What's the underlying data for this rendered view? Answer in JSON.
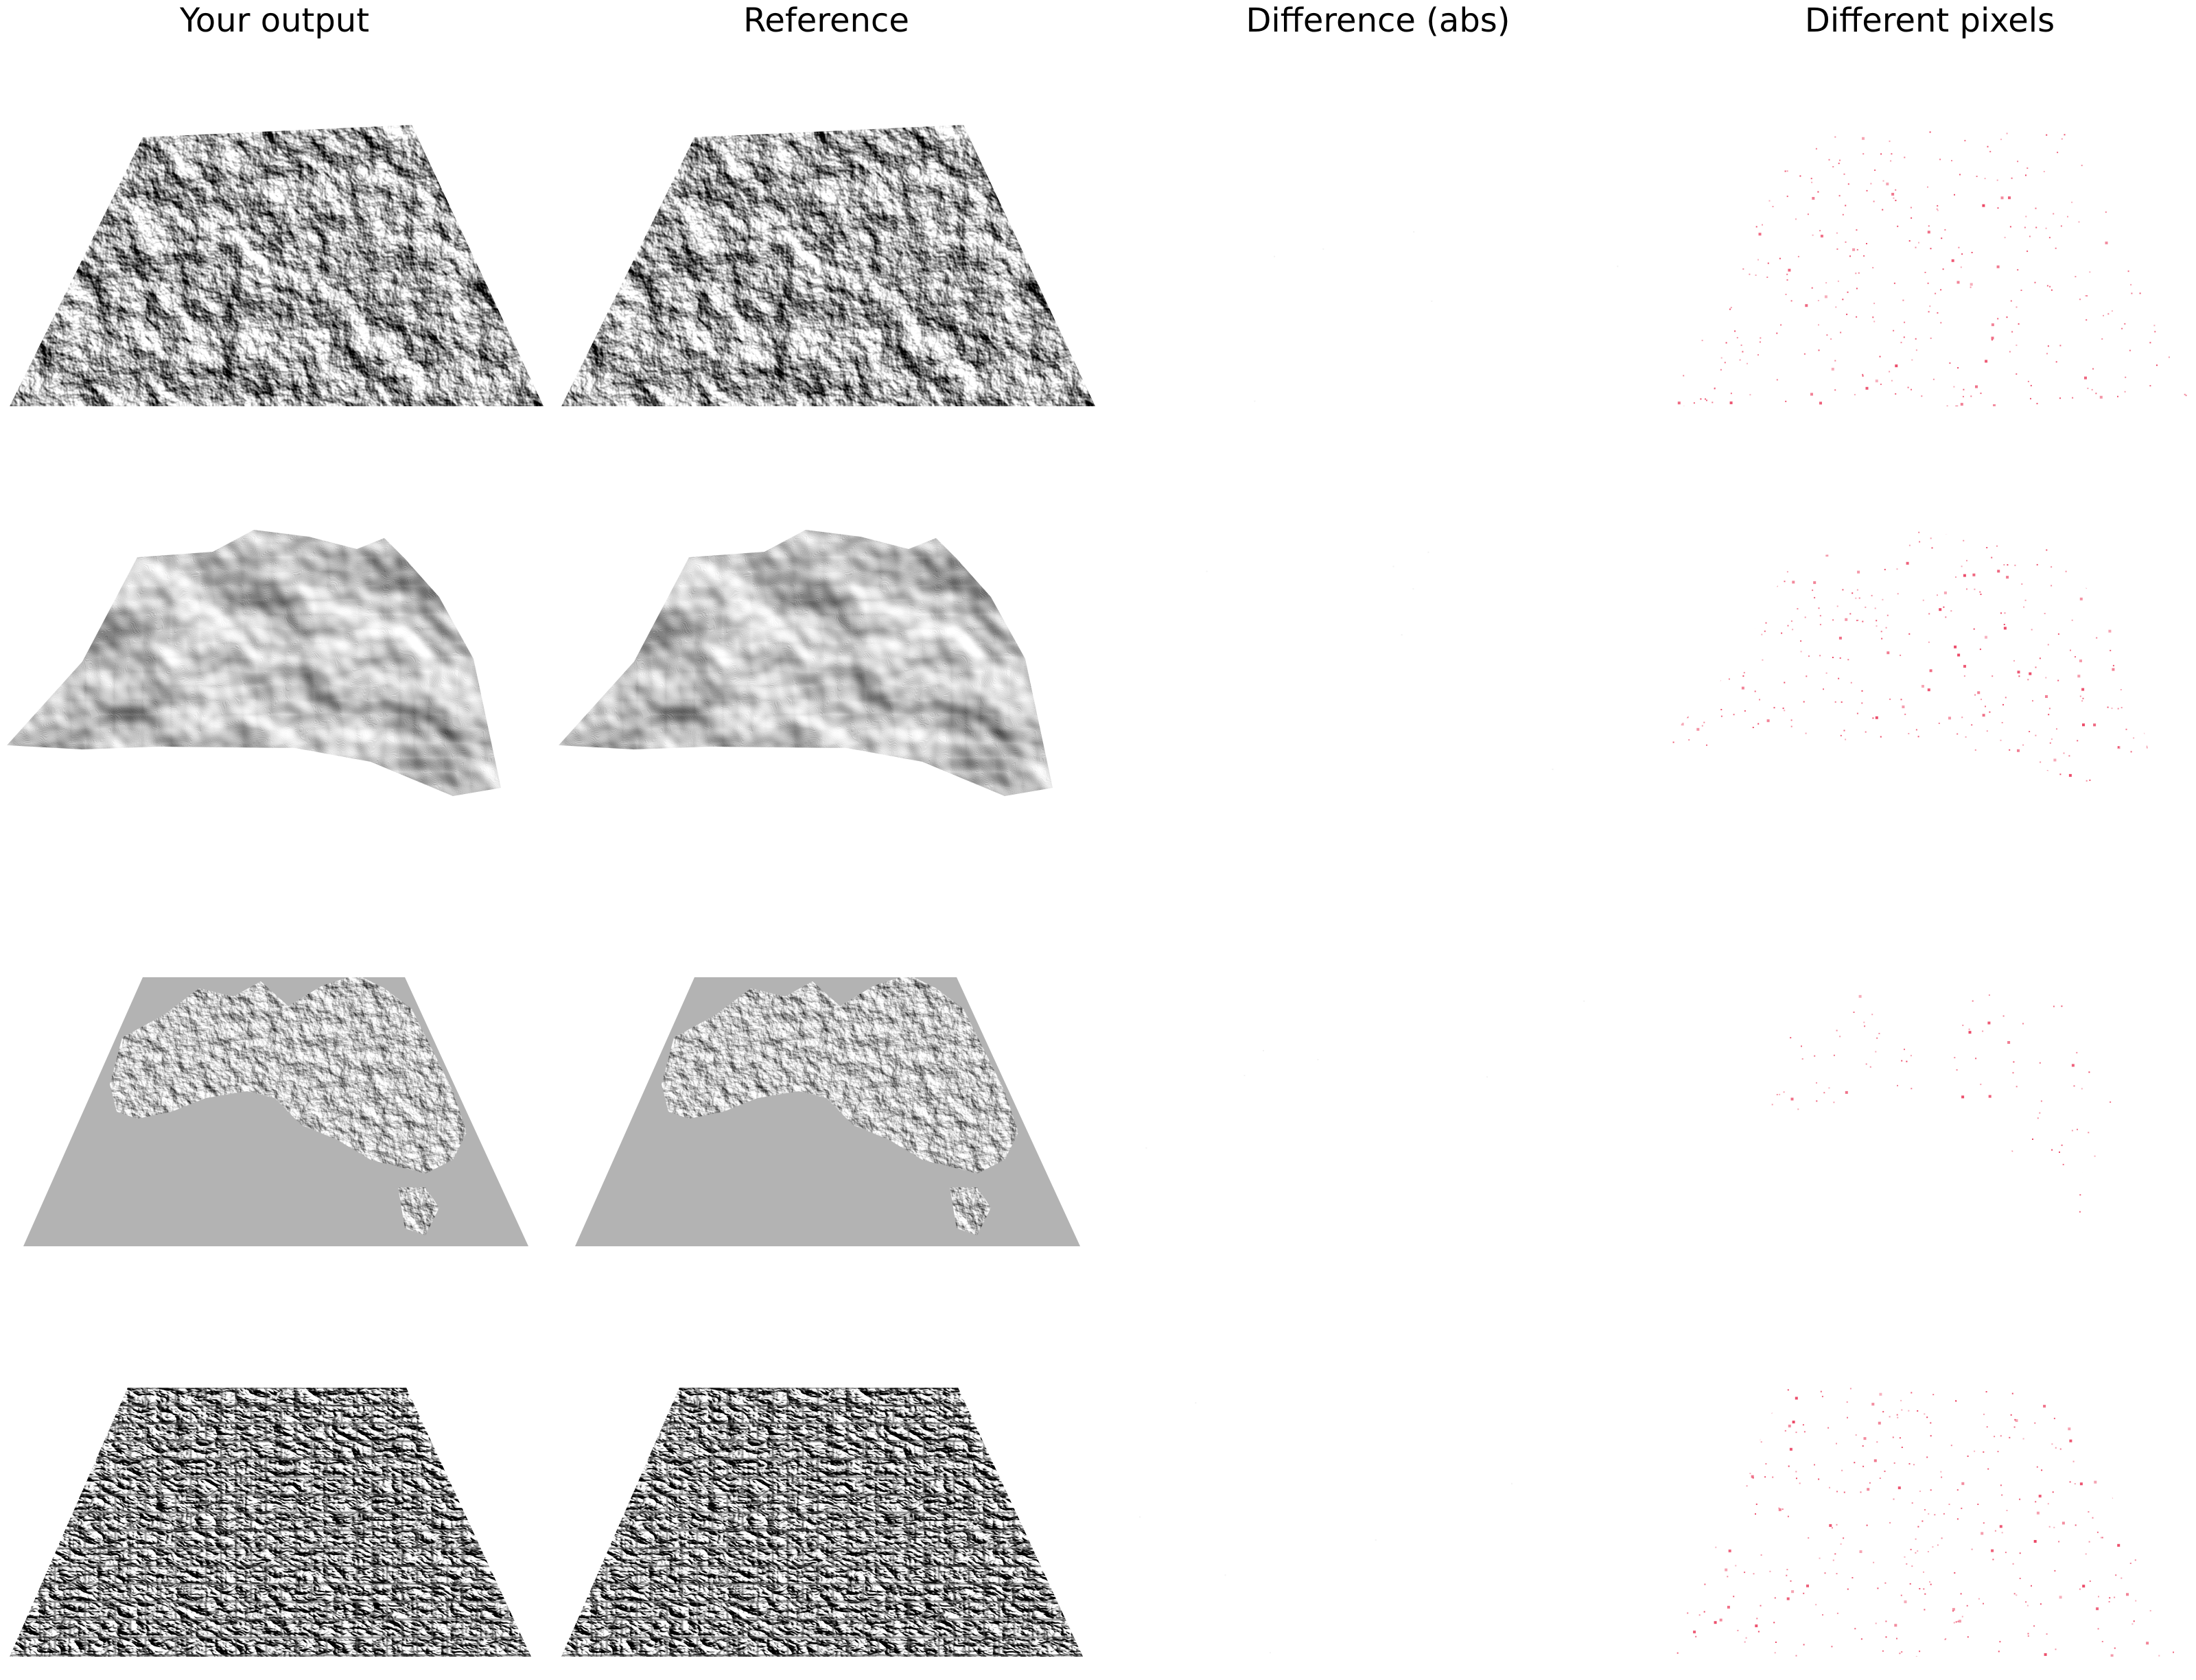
{
  "columns": [
    {
      "key": "output",
      "label": "Your output"
    },
    {
      "key": "reference",
      "label": "Reference"
    },
    {
      "key": "difference",
      "label": "Difference (abs)"
    },
    {
      "key": "different_pixels",
      "label": "Different pixels"
    }
  ],
  "rows": [
    {
      "subject": "terrain-mountains",
      "shading": "hillshade"
    },
    {
      "subject": "terrain-ridge",
      "shading": "hillshade"
    },
    {
      "subject": "australia-relief",
      "shading": "hillshade"
    },
    {
      "subject": "stone-pavement",
      "shading": "hillshade"
    }
  ],
  "colors": {
    "background": "#ffffff",
    "text": "#000000",
    "flat_grey": "#b3b3b3",
    "diff_pixel": "#e8264a"
  }
}
